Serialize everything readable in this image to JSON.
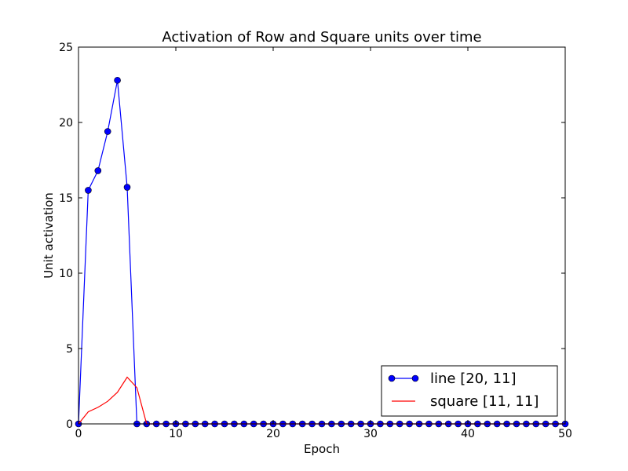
{
  "chart_data": {
    "type": "line",
    "title": "Activation of Row and Square units over time",
    "xlabel": "Epoch",
    "ylabel": "Unit activation",
    "xlim": [
      0,
      50
    ],
    "ylim": [
      0,
      25
    ],
    "xticks": [
      "0",
      "10",
      "20",
      "30",
      "40",
      "50"
    ],
    "yticks": [
      "0",
      "5",
      "10",
      "15",
      "20",
      "25"
    ],
    "grid": false,
    "legend_position": "lower-right",
    "series": [
      {
        "name": "line [20, 11]",
        "color": "#0000ff",
        "marker": "circle",
        "x": [
          0,
          1,
          2,
          3,
          4,
          5,
          6,
          7,
          8,
          9,
          10,
          11,
          12,
          13,
          14,
          15,
          16,
          17,
          18,
          19,
          20,
          21,
          22,
          23,
          24,
          25,
          26,
          27,
          28,
          29,
          30,
          31,
          32,
          33,
          34,
          35,
          36,
          37,
          38,
          39,
          40,
          41,
          42,
          43,
          44,
          45,
          46,
          47,
          48,
          49,
          50
        ],
        "y": [
          0,
          15.5,
          16.8,
          19.4,
          22.8,
          15.7,
          0,
          0,
          0,
          0,
          0,
          0,
          0,
          0,
          0,
          0,
          0,
          0,
          0,
          0,
          0,
          0,
          0,
          0,
          0,
          0,
          0,
          0,
          0,
          0,
          0,
          0,
          0,
          0,
          0,
          0,
          0,
          0,
          0,
          0,
          0,
          0,
          0,
          0,
          0,
          0,
          0,
          0,
          0,
          0,
          0
        ]
      },
      {
        "name": "square [11, 11]",
        "color": "#ff0000",
        "marker": "none",
        "x": [
          0,
          1,
          2,
          3,
          4,
          5,
          6,
          7,
          8,
          9,
          10,
          11,
          12,
          13,
          14,
          15,
          16,
          17,
          18,
          19,
          20,
          21,
          22,
          23,
          24,
          25,
          26,
          27,
          28,
          29,
          30,
          31,
          32,
          33,
          34,
          35,
          36,
          37,
          38,
          39,
          40,
          41,
          42,
          43,
          44,
          45,
          46,
          47,
          48,
          49,
          50
        ],
        "y": [
          0,
          0.8,
          1.1,
          1.5,
          2.1,
          3.1,
          2.4,
          0,
          0,
          0,
          0,
          0,
          0,
          0,
          0,
          0,
          0,
          0,
          0,
          0,
          0,
          0,
          0,
          0,
          0,
          0,
          0,
          0,
          0,
          0,
          0,
          0,
          0,
          0,
          0,
          0,
          0,
          0,
          0,
          0,
          0,
          0,
          0,
          0,
          0,
          0,
          0,
          0,
          0,
          0,
          0
        ]
      }
    ]
  }
}
